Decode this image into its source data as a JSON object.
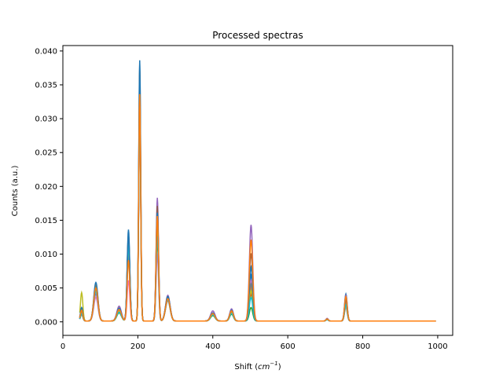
{
  "chart_data": {
    "type": "line",
    "title": "Processed spectras",
    "xlabel_main": "Shift (",
    "xlabel_unit": "cm",
    "xlabel_exp": "−1",
    "xlabel_close": ")",
    "ylabel": "Counts (a.u.)",
    "xlim": [
      0,
      1040
    ],
    "ylim": [
      -0.002,
      0.0408
    ],
    "x_ticks": [
      0,
      200,
      400,
      600,
      800,
      1000
    ],
    "x_tick_labels": [
      "0",
      "200",
      "400",
      "600",
      "800",
      "1000"
    ],
    "y_ticks": [
      0,
      0.005,
      0.01,
      0.015,
      0.02,
      0.025,
      0.03,
      0.035,
      0.04
    ],
    "y_tick_labels": [
      "0.000",
      "0.005",
      "0.010",
      "0.015",
      "0.020",
      "0.025",
      "0.030",
      "0.035",
      "0.040"
    ],
    "grid": false,
    "legend": "none",
    "x_range": [
      45,
      995
    ],
    "peaks_center": [
      50,
      88,
      150,
      175,
      205,
      252,
      280,
      400,
      450,
      502,
      705,
      755
    ],
    "series_colors": [
      "#1f77b4",
      "#ff7f0e",
      "#2ca02c",
      "#d62728",
      "#9467bd",
      "#8c564b",
      "#e377c2",
      "#7f7f7f",
      "#bcbd22",
      "#17becf"
    ],
    "series": [
      {
        "peaks": [
          0.0012,
          0.0052,
          0.0015,
          0.0135,
          0.0385,
          0.0165,
          0.0035,
          0.001,
          0.0015,
          0.0068,
          0.0003,
          0.004
        ]
      },
      {
        "peaks": [
          0.0015,
          0.0055,
          0.002,
          0.01,
          0.037,
          0.015,
          0.0032,
          0.0012,
          0.0012,
          0.005,
          0.0003,
          0.003
        ]
      },
      {
        "peaks": [
          0.001,
          0.0045,
          0.0012,
          0.012,
          0.03,
          0.012,
          0.003,
          0.0008,
          0.001,
          0.002,
          0.0002,
          0.0025
        ]
      },
      {
        "peaks": [
          0.0012,
          0.005,
          0.0018,
          0.011,
          0.032,
          0.014,
          0.0034,
          0.001,
          0.0013,
          0.004,
          0.0003,
          0.0028
        ]
      },
      {
        "peaks": [
          0.0018,
          0.004,
          0.0022,
          0.0095,
          0.0355,
          0.0182,
          0.0038,
          0.0015,
          0.0018,
          0.0142,
          0.0004,
          0.0038
        ]
      },
      {
        "peaks": [
          0.001,
          0.0048,
          0.0015,
          0.0125,
          0.034,
          0.017,
          0.0036,
          0.001,
          0.0014,
          0.01,
          0.0003,
          0.0032
        ]
      },
      {
        "peaks": [
          0.0012,
          0.0035,
          0.0018,
          0.006,
          0.03,
          0.01,
          0.003,
          0.0012,
          0.0012,
          0.006,
          0.0003,
          0.002
        ]
      },
      {
        "peaks": [
          0.0014,
          0.0046,
          0.0016,
          0.0105,
          0.033,
          0.0135,
          0.0032,
          0.0011,
          0.0013,
          0.0055,
          0.0003,
          0.0026
        ]
      },
      {
        "peaks": [
          0.0042,
          0.005,
          0.0014,
          0.0115,
          0.0345,
          0.0145,
          0.0034,
          0.001,
          0.0012,
          0.0045,
          0.0003,
          0.0022
        ]
      },
      {
        "peaks": [
          0.0011,
          0.0044,
          0.0013,
          0.0112,
          0.031,
          0.0125,
          0.0031,
          0.0009,
          0.0011,
          0.0035,
          0.0002,
          0.0024
        ]
      },
      {
        "peaks": [
          0.002,
          0.0057,
          0.0019,
          0.0128,
          0.038,
          0.016,
          0.0036,
          0.0012,
          0.0016,
          0.008,
          0.0003,
          0.0034
        ]
      },
      {
        "peaks": [
          0.0016,
          0.0049,
          0.0017,
          0.009,
          0.0335,
          0.0155,
          0.0033,
          0.0011,
          0.0015,
          0.012,
          0.0003,
          0.0036
        ]
      }
    ]
  }
}
